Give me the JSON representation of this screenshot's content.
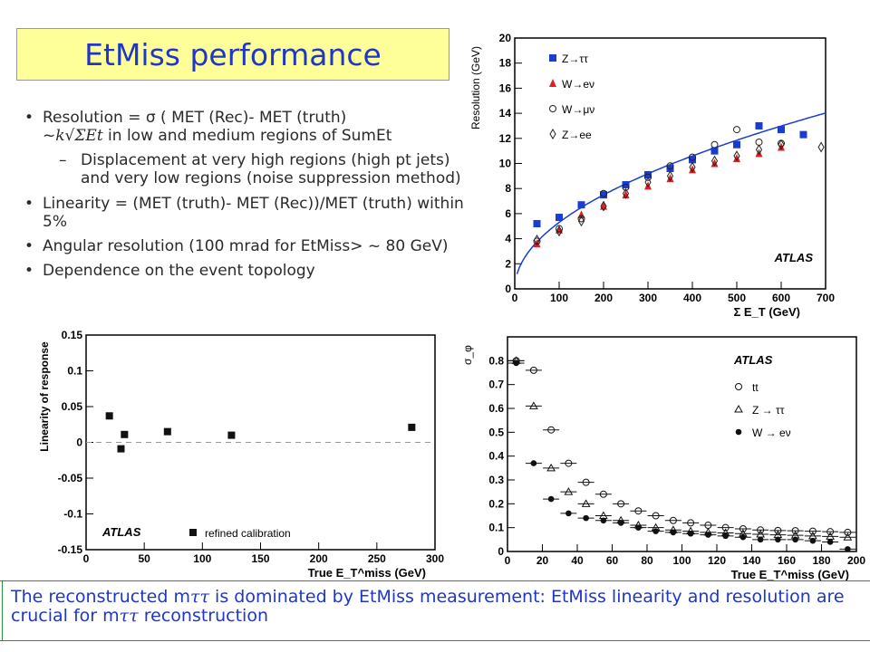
{
  "title": "EtMiss performance",
  "bullets": [
    {
      "text": "Resolution = σ ( MET (Rec)- MET (truth)"
    },
    {
      "prefix": "~",
      "formula": "k√ΣEt",
      "suffix": " in low and medium regions of SumEt"
    },
    {
      "text": "Displacement at very high regions (high pt jets) and very low regions (noise suppression method)"
    },
    {
      "text": "Linearity = (MET (truth)- MET (Rec))/MET (truth) within 5%"
    },
    {
      "text": "Angular resolution (100 mrad for EtMiss> ~ 80 GeV)"
    },
    {
      "text": "Dependence on the event topology"
    }
  ],
  "bottom_note": {
    "part1": "The reconstructed m",
    "tt": "ττ",
    "part2": " is dominated by EtMiss measurement: EtMiss linearity and resolution are crucial for m",
    "part3": " reconstruction"
  },
  "chart_data": [
    {
      "type": "scatter",
      "id": "resolution",
      "xlabel": "Σ E_T (GeV)",
      "ylabel": "Resolution (GeV)",
      "xlim": [
        0,
        700
      ],
      "ylim": [
        0,
        20
      ],
      "xticks": [
        0,
        100,
        200,
        300,
        400,
        500,
        600,
        700
      ],
      "yticks": [
        0,
        2,
        4,
        6,
        8,
        10,
        12,
        14,
        16,
        18,
        20
      ],
      "atlas_label": "ATLAS",
      "series": [
        {
          "name": "Z→ττ",
          "marker": "square-filled",
          "color": "#1a3cd6",
          "x": [
            50,
            100,
            150,
            200,
            250,
            300,
            350,
            400,
            450,
            500,
            550,
            600,
            650
          ],
          "y": [
            5.2,
            5.7,
            6.7,
            7.5,
            8.3,
            9.1,
            9.6,
            10.3,
            11.0,
            11.5,
            13.0,
            12.7,
            12.3
          ]
        },
        {
          "name": "W→eν",
          "marker": "triangle-filled",
          "color": "#e02020",
          "x": [
            50,
            100,
            150,
            200,
            250,
            300,
            350,
            400,
            450,
            500,
            550,
            600
          ],
          "y": [
            3.6,
            4.7,
            5.9,
            6.6,
            7.5,
            8.2,
            8.8,
            9.5,
            10.0,
            10.4,
            10.8,
            11.3
          ]
        },
        {
          "name": "W→μν",
          "marker": "circle-open",
          "color": "#222222",
          "x": [
            50,
            100,
            150,
            200,
            250,
            300,
            350,
            400,
            450,
            500,
            550,
            600
          ],
          "y": [
            3.8,
            4.8,
            5.6,
            7.6,
            8.1,
            8.9,
            9.8,
            10.5,
            11.5,
            12.7,
            11.7,
            11.6
          ]
        },
        {
          "name": "Z→ee",
          "marker": "diamond-open",
          "color": "#222222",
          "x": [
            50,
            100,
            150,
            200,
            250,
            300,
            350,
            400,
            450,
            500,
            550,
            600,
            690
          ],
          "y": [
            3.9,
            4.6,
            5.4,
            6.6,
            7.6,
            8.5,
            9.0,
            9.7,
            10.2,
            10.6,
            11.1,
            11.5,
            11.3
          ]
        }
      ],
      "fit": {
        "k": 0.53,
        "x_from": 0,
        "x_to": 700
      }
    },
    {
      "type": "scatter",
      "id": "linearity",
      "xlabel": "True E_T^miss (GeV)",
      "ylabel": "Linearity of response",
      "xlim": [
        0,
        300
      ],
      "ylim": [
        -0.15,
        0.15
      ],
      "xticks": [
        0,
        50,
        100,
        150,
        200,
        250,
        300
      ],
      "yticks": [
        -0.15,
        -0.1,
        -0.05,
        0,
        0.05,
        0.1,
        0.15
      ],
      "ytick_labels": [
        "-0.15",
        "-0.1",
        "-0.05",
        "0",
        "0.05",
        "0.1",
        "0.15"
      ],
      "atlas_label": "ATLAS",
      "legend_text": "refined calibration",
      "series": [
        {
          "name": "E_T^miss refined calibration",
          "marker": "square-filled",
          "color": "#111111",
          "x": [
            20,
            30,
            33,
            70,
            125,
            280
          ],
          "y": [
            0.037,
            -0.009,
            0.011,
            0.015,
            0.01,
            0.021
          ]
        }
      ]
    },
    {
      "type": "scatter",
      "id": "angular",
      "xlabel": "True E_T^miss (GeV)",
      "ylabel": "σ_φ",
      "xlim": [
        0,
        200
      ],
      "ylim": [
        0,
        0.9
      ],
      "xticks": [
        0,
        20,
        40,
        60,
        80,
        100,
        120,
        140,
        160,
        180,
        200
      ],
      "yticks": [
        0,
        0.1,
        0.2,
        0.3,
        0.4,
        0.5,
        0.6,
        0.7,
        0.8
      ],
      "atlas_label": "ATLAS",
      "series": [
        {
          "name": "tt",
          "marker": "circle-open",
          "color": "#111111",
          "x": [
            5,
            15,
            25,
            35,
            45,
            55,
            65,
            75,
            85,
            95,
            105,
            115,
            125,
            135,
            145,
            155,
            165,
            175,
            185,
            195
          ],
          "y": [
            0.8,
            0.76,
            0.51,
            0.37,
            0.29,
            0.24,
            0.2,
            0.17,
            0.15,
            0.13,
            0.12,
            0.11,
            0.1,
            0.095,
            0.09,
            0.088,
            0.087,
            0.085,
            0.083,
            0.08
          ]
        },
        {
          "name": "Z → ττ",
          "marker": "triangle-open",
          "color": "#111111",
          "x": [
            5,
            15,
            25,
            35,
            45,
            55,
            65,
            75,
            85,
            95,
            105,
            115,
            125,
            135,
            145,
            155,
            165,
            175,
            185,
            195
          ],
          "y": [
            0.8,
            0.61,
            0.35,
            0.25,
            0.2,
            0.15,
            0.13,
            0.11,
            0.1,
            0.09,
            0.085,
            0.08,
            0.078,
            0.075,
            0.072,
            0.07,
            0.068,
            0.065,
            0.063,
            0.06
          ]
        },
        {
          "name": "W → eν",
          "marker": "circle-filled",
          "color": "#111111",
          "x": [
            5,
            15,
            25,
            35,
            45,
            55,
            65,
            75,
            85,
            95,
            105,
            115,
            125,
            135,
            145,
            155,
            165,
            175,
            185,
            195
          ],
          "y": [
            0.79,
            0.37,
            0.22,
            0.16,
            0.14,
            0.13,
            0.12,
            0.1,
            0.085,
            0.08,
            0.075,
            0.07,
            0.065,
            0.06,
            0.05,
            0.05,
            0.05,
            0.045,
            0.04,
            0.01
          ]
        }
      ]
    }
  ]
}
